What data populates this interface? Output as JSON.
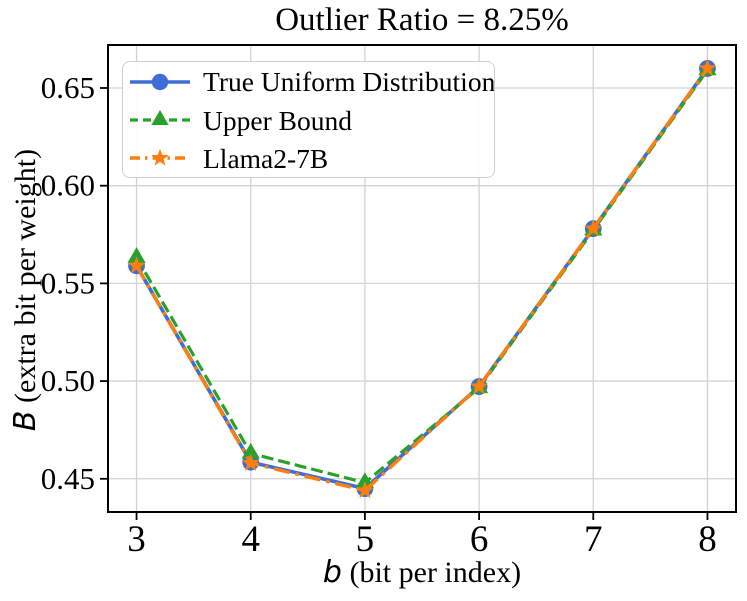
{
  "chart_data": {
    "type": "line",
    "title": "Outlier Ratio = 8.25%",
    "xlabel": "b (bit per index)",
    "xlabel_var": "b",
    "xlabel_rest": " (bit per index)",
    "ylabel": "B (extra bit per weight)",
    "ylabel_var": "B",
    "ylabel_rest": " (extra bit per weight)",
    "x": [
      3,
      4,
      5,
      6,
      7,
      8
    ],
    "x_ticks": [
      3,
      4,
      5,
      6,
      7,
      8
    ],
    "y_ticks": [
      0.45,
      0.5,
      0.55,
      0.6,
      0.65
    ],
    "xlim": [
      2.75,
      8.25
    ],
    "ylim": [
      0.433,
      0.672
    ],
    "grid": true,
    "grid_color": "#d3d3d3",
    "legend_position": "upper left",
    "series": [
      {
        "name": "True Uniform Distribution",
        "color": "#3E6DD8",
        "linestyle": "solid",
        "marker": "circle",
        "values": [
          0.559,
          0.4585,
          0.445,
          0.4972,
          0.578,
          0.66
        ]
      },
      {
        "name": "Upper Bound",
        "color": "#2CA02C",
        "linestyle": "dashed",
        "marker": "triangle-up",
        "values": [
          0.5632,
          0.463,
          0.448,
          0.4965,
          0.5772,
          0.6592
        ]
      },
      {
        "name": "Llama2-7B",
        "color": "#FF7F0E",
        "linestyle": "dashdot",
        "marker": "star",
        "values": [
          0.559,
          0.458,
          0.444,
          0.4972,
          0.578,
          0.66
        ]
      }
    ]
  }
}
